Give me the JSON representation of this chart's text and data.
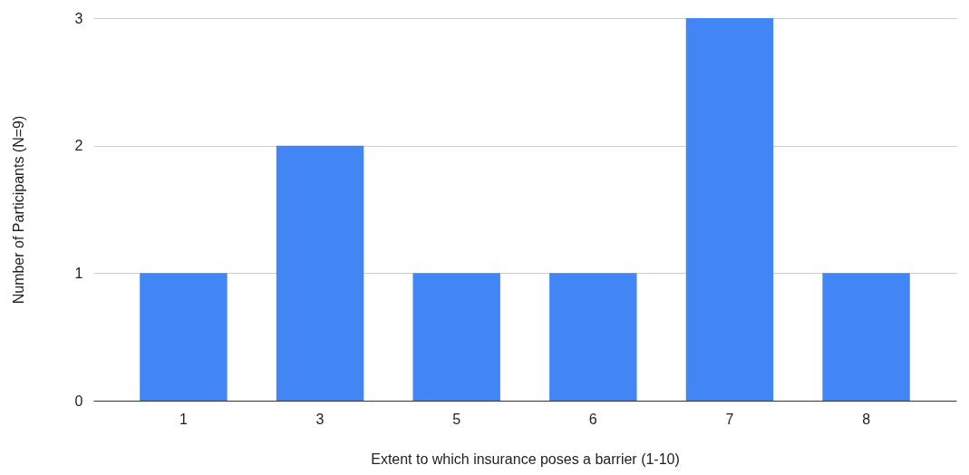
{
  "chart_data": {
    "type": "bar",
    "xlabel": "Extent to which insurance poses a barrier (1-10)",
    "ylabel": "Number of Participants (N=9)",
    "categories": [
      "1",
      "3",
      "5",
      "6",
      "7",
      "8"
    ],
    "values": [
      1,
      2,
      1,
      1,
      3,
      1
    ],
    "color": "#4285f4",
    "ylim": [
      0,
      3
    ],
    "yticks": [
      0,
      1,
      2,
      3
    ],
    "grid": "y"
  }
}
